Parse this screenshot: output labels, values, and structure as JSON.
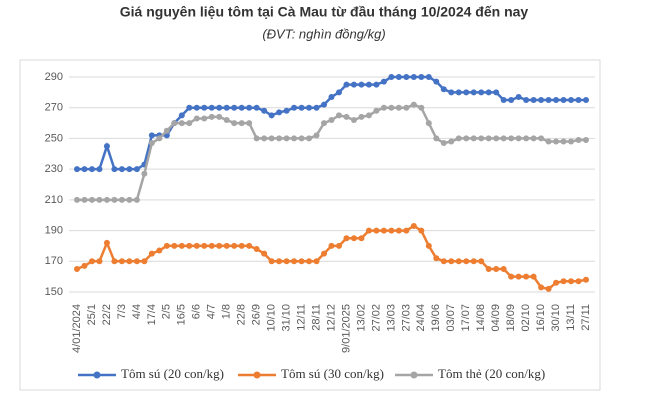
{
  "chart_data": {
    "type": "line",
    "title": "Giá nguyên liệu tôm tại Cà Mau từ đầu tháng 10/2024 đến nay",
    "subtitle": "(ĐVT: nghìn đồng/kg)",
    "categories": [
      "4/01/2024",
      null,
      "25/1",
      null,
      "22/2",
      null,
      "7/3",
      null,
      "4/4",
      null,
      "17/4",
      null,
      "2/5",
      null,
      "16/5",
      null,
      "6/6",
      null,
      "4/7",
      null,
      "1/8",
      null,
      "22/8",
      null,
      "26/9",
      null,
      "10/10",
      null,
      "31/10",
      null,
      "12/11",
      null,
      "28/11",
      null,
      "12/12",
      null,
      "9/01/2025",
      null,
      "13/02",
      null,
      "27/02",
      null,
      "13/03",
      null,
      "27/03",
      null,
      "24/04",
      null,
      "19/06",
      null,
      "03/07",
      null,
      "17/07",
      null,
      "14/08",
      null,
      "04/09",
      null,
      "18/09",
      null,
      "02/10",
      null,
      "16/10",
      null,
      "30/10",
      null,
      "13/11",
      null,
      "27/11"
    ],
    "series": [
      {
        "name": "Tôm sú (20 con/kg)",
        "color": "#4472c4",
        "values": [
          230,
          230,
          230,
          230,
          245,
          230,
          230,
          230,
          230,
          233,
          252,
          252,
          252,
          260,
          265,
          270,
          270,
          270,
          270,
          270,
          270,
          270,
          270,
          270,
          270,
          268,
          265,
          267,
          268,
          270,
          270,
          270,
          270,
          272,
          277,
          280,
          285,
          285,
          285,
          285,
          285,
          287,
          290,
          290,
          290,
          290,
          290,
          290,
          287,
          282,
          280,
          280,
          280,
          280,
          280,
          280,
          280,
          275,
          275,
          277,
          275,
          275,
          275,
          275,
          275,
          275,
          275,
          275,
          275
        ]
      },
      {
        "name": "Tôm sú (30 con/kg)",
        "color": "#ed7d31",
        "values": [
          165,
          167,
          170,
          170,
          182,
          170,
          170,
          170,
          170,
          170,
          175,
          177,
          180,
          180,
          180,
          180,
          180,
          180,
          180,
          180,
          180,
          180,
          180,
          180,
          178,
          175,
          170,
          170,
          170,
          170,
          170,
          170,
          170,
          175,
          180,
          180,
          185,
          185,
          185,
          190,
          190,
          190,
          190,
          190,
          190,
          193,
          190,
          180,
          172,
          170,
          170,
          170,
          170,
          170,
          170,
          165,
          165,
          165,
          160,
          160,
          160,
          160,
          153,
          152,
          156,
          157,
          157,
          157,
          158
        ]
      },
      {
        "name": "Tôm thẻ (20 con/kg)",
        "color": "#a5a5a5",
        "values": [
          210,
          210,
          210,
          210,
          210,
          210,
          210,
          210,
          210,
          227,
          247,
          250,
          255,
          260,
          260,
          260,
          263,
          263,
          264,
          264,
          262,
          260,
          260,
          260,
          250,
          250,
          250,
          250,
          250,
          250,
          250,
          250,
          252,
          260,
          262,
          265,
          264,
          262,
          264,
          265,
          268,
          270,
          270,
          270,
          270,
          272,
          270,
          260,
          250,
          247,
          248,
          250,
          250,
          250,
          250,
          250,
          250,
          250,
          250,
          250,
          250,
          250,
          250,
          248,
          248,
          248,
          248,
          249,
          249
        ]
      }
    ],
    "ylim": [
      150,
      290
    ],
    "yticks": [
      150,
      170,
      190,
      210,
      230,
      250,
      270,
      290
    ],
    "grid": true,
    "legend": "bottom"
  }
}
